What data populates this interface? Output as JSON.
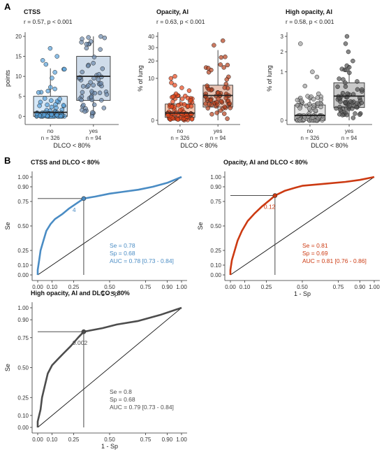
{
  "panel_labels": [
    "A",
    "B"
  ],
  "chart_data": [
    {
      "type": "box",
      "title": "CTSS",
      "subtitle": "r = 0.57, p < 0.001",
      "xlabel": "DLCO < 80%",
      "ylabel": "points",
      "categories": [
        "no",
        "yes"
      ],
      "n_labels": [
        "n = 326",
        "n = 94"
      ],
      "ylim": [
        -1,
        20
      ],
      "y_ticks": [
        0,
        5,
        10,
        15,
        20
      ],
      "fill_colors": [
        "#d6e8f7",
        "#cfdcea"
      ],
      "point_colors": [
        "#5aa3dc",
        "#6d8aad"
      ],
      "boxes": [
        {
          "q1": 0,
          "median": 1,
          "q3": 5,
          "whisker_low": 0,
          "whisker_high": 12,
          "outliers": [
            13,
            14,
            15,
            17
          ]
        },
        {
          "q1": 4,
          "median": 10,
          "q3": 15,
          "whisker_low": 0,
          "whisker_high": 20,
          "outliers": []
        }
      ]
    },
    {
      "type": "box",
      "title": "Opacity, AI",
      "subtitle": "r = 0.63, p < 0.001",
      "xlabel": "DLCO < 80%",
      "ylabel": "% of lung",
      "categories": [
        "no",
        "yes"
      ],
      "n_labels": [
        "n = 326",
        "n = 94"
      ],
      "scale": "sqrt",
      "ylim": [
        0,
        40
      ],
      "y_ticks": [
        0,
        10,
        20,
        30,
        40
      ],
      "fill_colors": [
        "#f6c7b0",
        "#e9c4b4"
      ],
      "point_colors": [
        "#e8461a",
        "#b5401d"
      ],
      "boxes": [
        {
          "q1": 0.05,
          "median": 0.3,
          "q3": 1.5,
          "whisker_low": 0,
          "whisker_high": 3.5,
          "outliers": [
            4,
            5,
            6,
            7,
            8,
            10,
            11
          ]
        },
        {
          "q1": 1,
          "median": 3.5,
          "q3": 7,
          "whisker_low": 0,
          "whisker_high": 28,
          "outliers": [
            32,
            36
          ]
        }
      ]
    },
    {
      "type": "box",
      "title": "High opacity, AI",
      "subtitle": "r = 0.58, p < 0.001",
      "xlabel": "DLCO < 80%",
      "ylabel": "% of lung",
      "categories": [
        "no",
        "yes"
      ],
      "n_labels": [
        "n = 326",
        "n = 94"
      ],
      "scale": "sqrt",
      "ylim": [
        0,
        3
      ],
      "y_ticks": [
        0,
        1,
        2,
        3
      ],
      "fill_colors": [
        "#e6e6e6",
        "#c9c9c9"
      ],
      "point_colors": [
        "#a0a0a0",
        "#555555"
      ],
      "boxes": [
        {
          "q1": 0,
          "median": 0.01,
          "q3": 0.1,
          "whisker_low": 0,
          "whisker_high": 0.25,
          "outliers": [
            0.3,
            0.5,
            0.8,
            1.0,
            2.5
          ]
        },
        {
          "q1": 0.07,
          "median": 0.25,
          "q3": 0.6,
          "whisker_low": 0,
          "whisker_high": 1.3,
          "outliers": [
            1.5,
            2.0,
            2.5,
            3.0
          ]
        }
      ]
    },
    {
      "type": "line",
      "title": "CTSS and DLCO < 80%",
      "xlabel": "1 - Sp",
      "ylabel": "Se",
      "x_ticks": [
        "0.00",
        "0.10",
        "0.25",
        "0.50",
        "0.75",
        "0.90",
        "1.00"
      ],
      "y_ticks": [
        "0.00",
        "0.10",
        "0.25",
        "0.50",
        "0.75",
        "0.90",
        "1.00"
      ],
      "color": "#4a8cc4",
      "threshold_label": "4",
      "cut_point": {
        "x": 0.32,
        "y": 0.78
      },
      "stats": [
        "Se = 0.78",
        "Sp = 0.68",
        "AUC = 0.78 [0.73 - 0.84]"
      ],
      "roc": [
        [
          0,
          0
        ],
        [
          0,
          0.05
        ],
        [
          0.01,
          0.15
        ],
        [
          0.02,
          0.25
        ],
        [
          0.04,
          0.35
        ],
        [
          0.06,
          0.45
        ],
        [
          0.09,
          0.52
        ],
        [
          0.12,
          0.57
        ],
        [
          0.17,
          0.62
        ],
        [
          0.22,
          0.68
        ],
        [
          0.27,
          0.73
        ],
        [
          0.32,
          0.78
        ],
        [
          0.4,
          0.8
        ],
        [
          0.5,
          0.83
        ],
        [
          0.6,
          0.85
        ],
        [
          0.7,
          0.87
        ],
        [
          0.8,
          0.9
        ],
        [
          0.9,
          0.94
        ],
        [
          1,
          1
        ]
      ]
    },
    {
      "type": "line",
      "title": "Opacity, AI and DLCO < 80%",
      "xlabel": "1 - Sp",
      "ylabel": "Se",
      "x_ticks": [
        "0.00",
        "0.10",
        "0.25",
        "0.50",
        "0.75",
        "0.90",
        "1.00"
      ],
      "y_ticks": [
        "0.00",
        "0.10",
        "0.25",
        "0.50",
        "0.75",
        "0.90",
        "1.00"
      ],
      "color": "#cc3a12",
      "threshold_label": "0.12",
      "cut_point": {
        "x": 0.31,
        "y": 0.81
      },
      "stats": [
        "Se = 0.81",
        "Sp = 0.69",
        "AUC = 0.81 [0.76 - 0.86]"
      ],
      "roc": [
        [
          0,
          0
        ],
        [
          0,
          0.05
        ],
        [
          0.01,
          0.15
        ],
        [
          0.03,
          0.25
        ],
        [
          0.05,
          0.35
        ],
        [
          0.08,
          0.45
        ],
        [
          0.12,
          0.55
        ],
        [
          0.17,
          0.63
        ],
        [
          0.22,
          0.7
        ],
        [
          0.27,
          0.76
        ],
        [
          0.31,
          0.81
        ],
        [
          0.38,
          0.86
        ],
        [
          0.45,
          0.89
        ],
        [
          0.5,
          0.91
        ],
        [
          0.65,
          0.93
        ],
        [
          0.8,
          0.95
        ],
        [
          0.9,
          0.97
        ],
        [
          1,
          1
        ]
      ]
    },
    {
      "type": "line",
      "title": "High opacity, AI and DLCO < 80%",
      "xlabel": "1 - Sp",
      "ylabel": "Se",
      "x_ticks": [
        "0.00",
        "0.10",
        "0.25",
        "0.50",
        "0.75",
        "0.90",
        "1.00"
      ],
      "y_ticks": [
        "0.00",
        "0.10",
        "0.25",
        "0.50",
        "0.75",
        "0.90",
        "1.00"
      ],
      "color": "#4d4d4d",
      "threshold_label": "0.002",
      "cut_point": {
        "x": 0.32,
        "y": 0.8
      },
      "stats": [
        "Se = 0.8",
        "Sp = 0.68",
        "AUC = 0.79 [0.73 - 0.84]"
      ],
      "roc": [
        [
          0,
          0
        ],
        [
          0,
          0.05
        ],
        [
          0.02,
          0.15
        ],
        [
          0.03,
          0.25
        ],
        [
          0.05,
          0.35
        ],
        [
          0.07,
          0.45
        ],
        [
          0.1,
          0.52
        ],
        [
          0.14,
          0.57
        ],
        [
          0.18,
          0.62
        ],
        [
          0.23,
          0.68
        ],
        [
          0.28,
          0.75
        ],
        [
          0.32,
          0.8
        ],
        [
          0.45,
          0.83
        ],
        [
          0.55,
          0.86
        ],
        [
          0.7,
          0.89
        ],
        [
          0.85,
          0.94
        ],
        [
          1,
          1
        ]
      ]
    }
  ]
}
